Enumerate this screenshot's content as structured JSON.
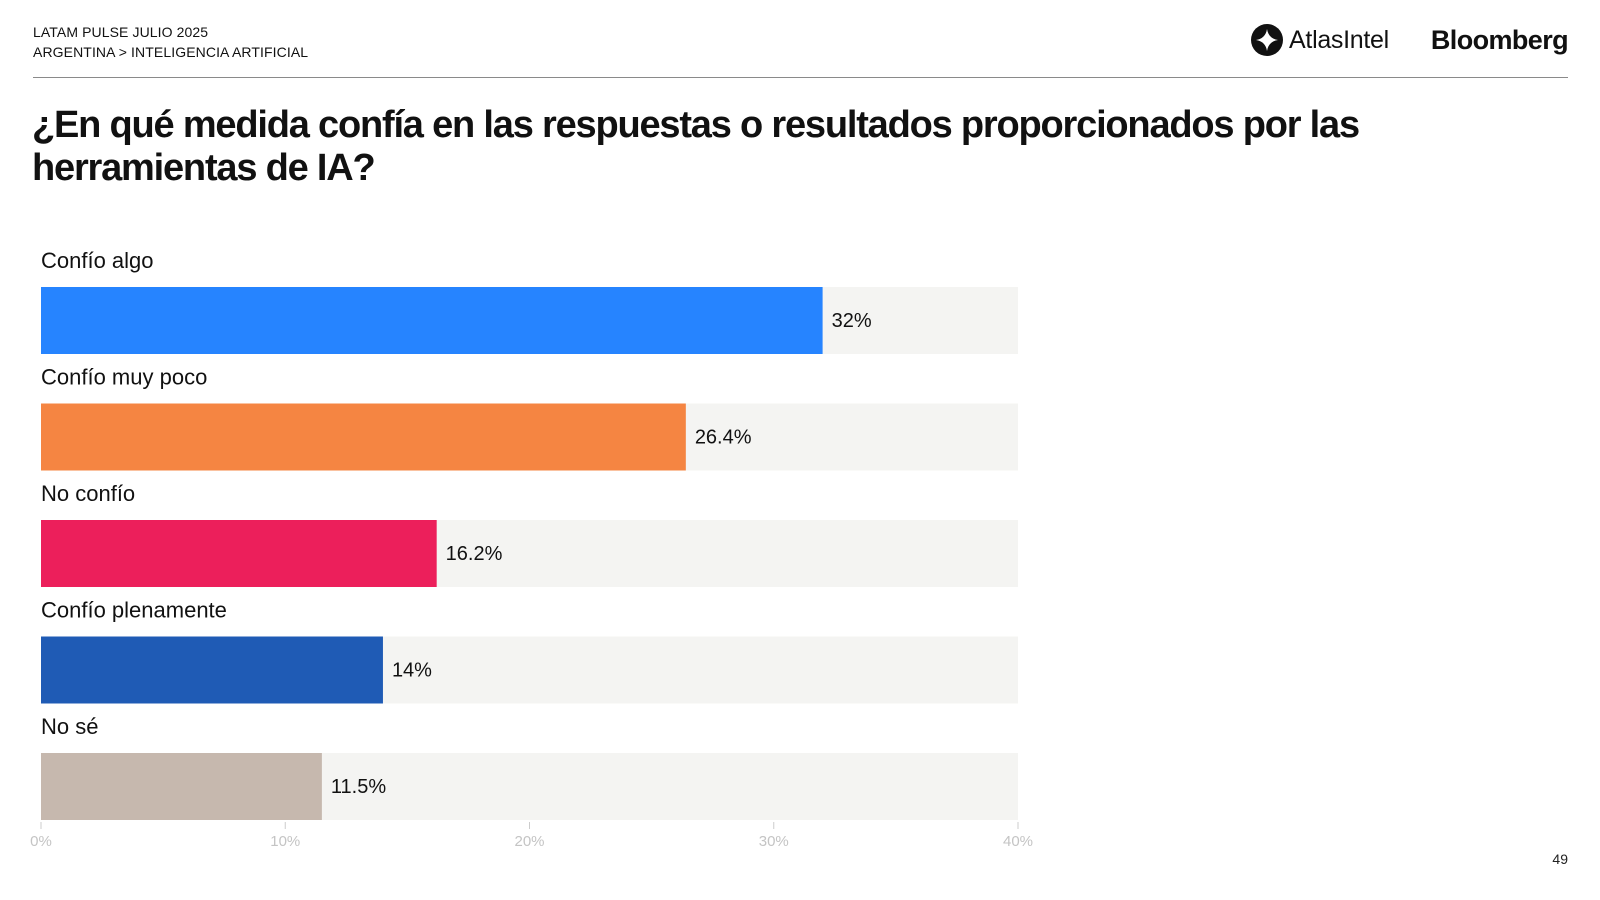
{
  "header": {
    "line1": "LATAM PULSE JULIO 2025",
    "line2": "ARGENTINA > INTELIGENCIA ARTIFICIAL",
    "logo_atlas": "AtlasIntel",
    "logo_bloomberg": "Bloomberg"
  },
  "title": "¿En qué medida confía en las respuestas o resultados proporcionados por las herramientas de IA?",
  "page_number": "49",
  "chart_data": {
    "type": "bar",
    "orientation": "horizontal",
    "title": "¿En qué medida confía en las respuestas o resultados proporcionados por las herramientas de IA?",
    "categories": [
      "Confío algo",
      "Confío muy poco",
      "No confío",
      "Confío plenamente",
      "No sé"
    ],
    "values": [
      32,
      26.4,
      16.2,
      14,
      11.5
    ],
    "value_labels": [
      "32%",
      "26.4%",
      "16.2%",
      "14%",
      "11.5%"
    ],
    "colors": [
      "#2684FF",
      "#F58542",
      "#EC1F5B",
      "#1F5BB5",
      "#C6B8AE"
    ],
    "track_color": "#F4F4F2",
    "xlim": [
      0,
      40
    ],
    "ticks": [
      0,
      10,
      20,
      30,
      40
    ],
    "tick_labels": [
      "0%",
      "10%",
      "20%",
      "30%",
      "40%"
    ],
    "xlabel": "",
    "ylabel": ""
  }
}
